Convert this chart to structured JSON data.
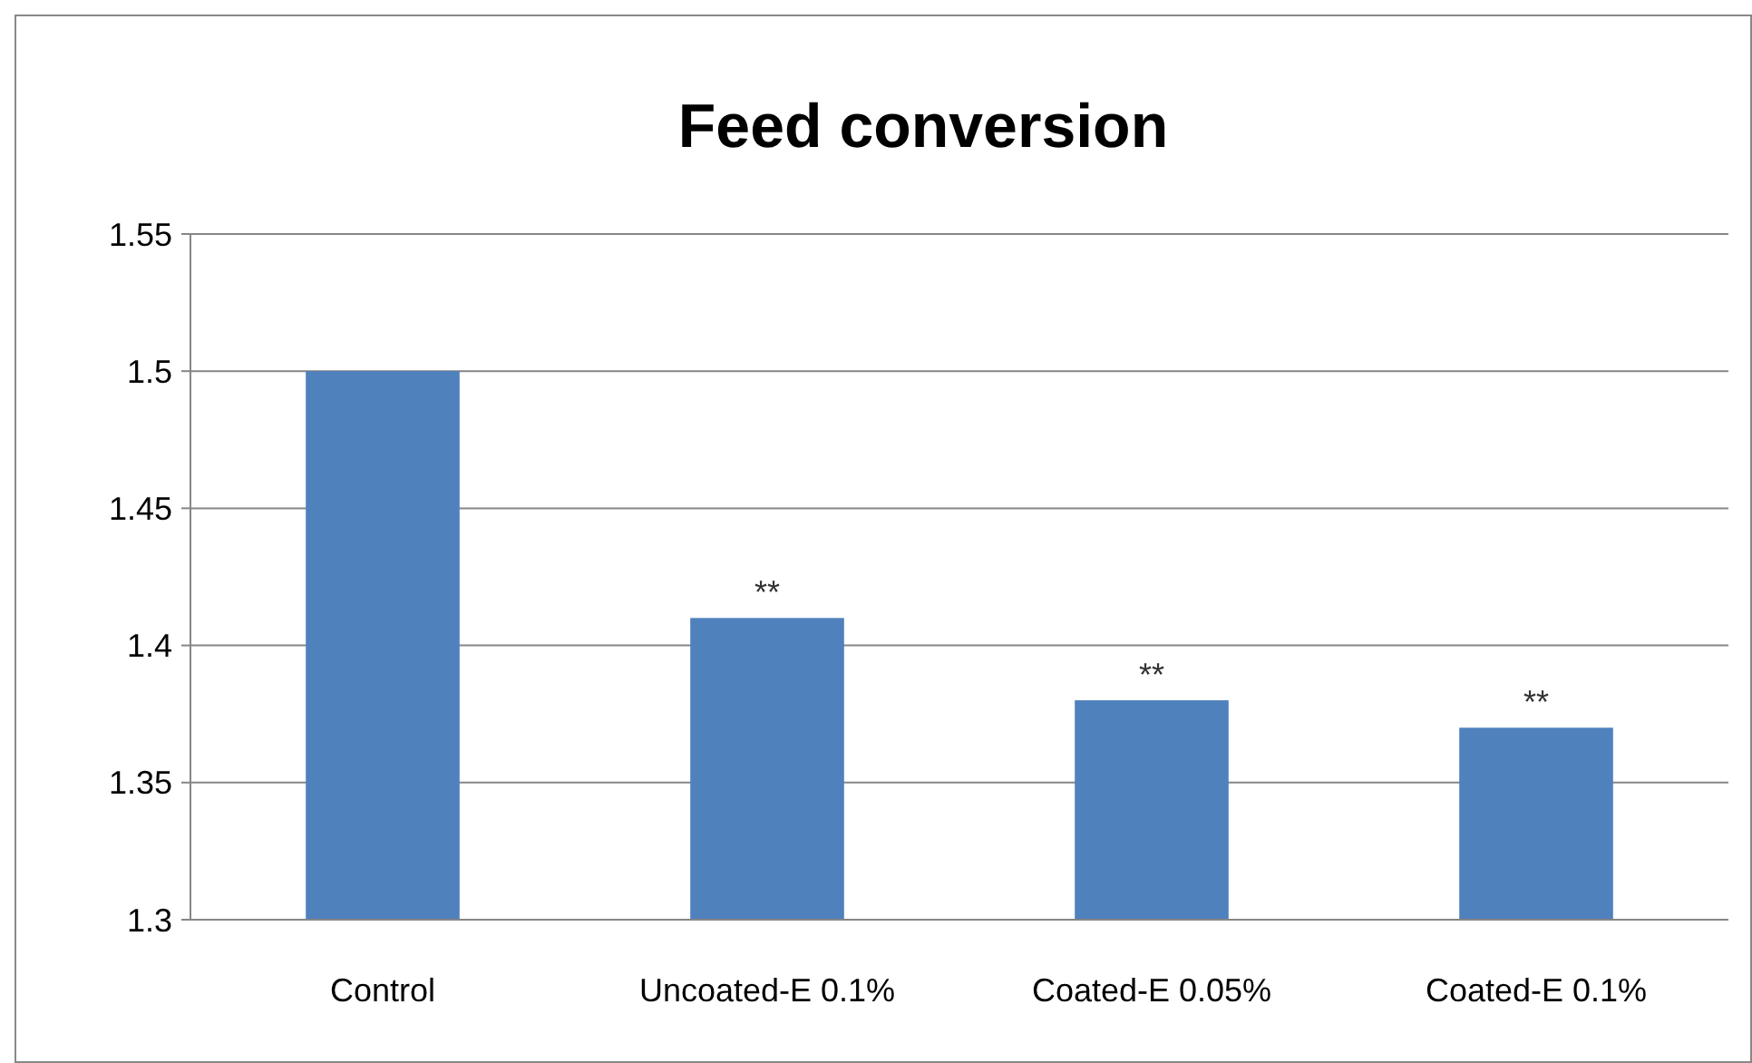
{
  "chart_data": {
    "type": "bar",
    "title": "Feed conversion",
    "categories": [
      "Control",
      "Uncoated-E 0.1%",
      "Coated-E 0.05%",
      "Coated-E 0.1%"
    ],
    "values": [
      1.5,
      1.41,
      1.38,
      1.37
    ],
    "color": "#4f81bd",
    "ylim": [
      1.3,
      1.55
    ],
    "yticks": [
      1.3,
      1.35,
      1.4,
      1.45,
      1.5,
      1.55
    ],
    "grid": "y",
    "annotations": [
      {
        "text": "**",
        "x": "Uncoated-E 0.1%",
        "y": 1.41
      },
      {
        "text": "**",
        "x": "Coated-E 0.05%",
        "y": 1.38
      },
      {
        "text": "**",
        "x": "Coated-E 0.1%",
        "y": 1.37
      }
    ]
  }
}
